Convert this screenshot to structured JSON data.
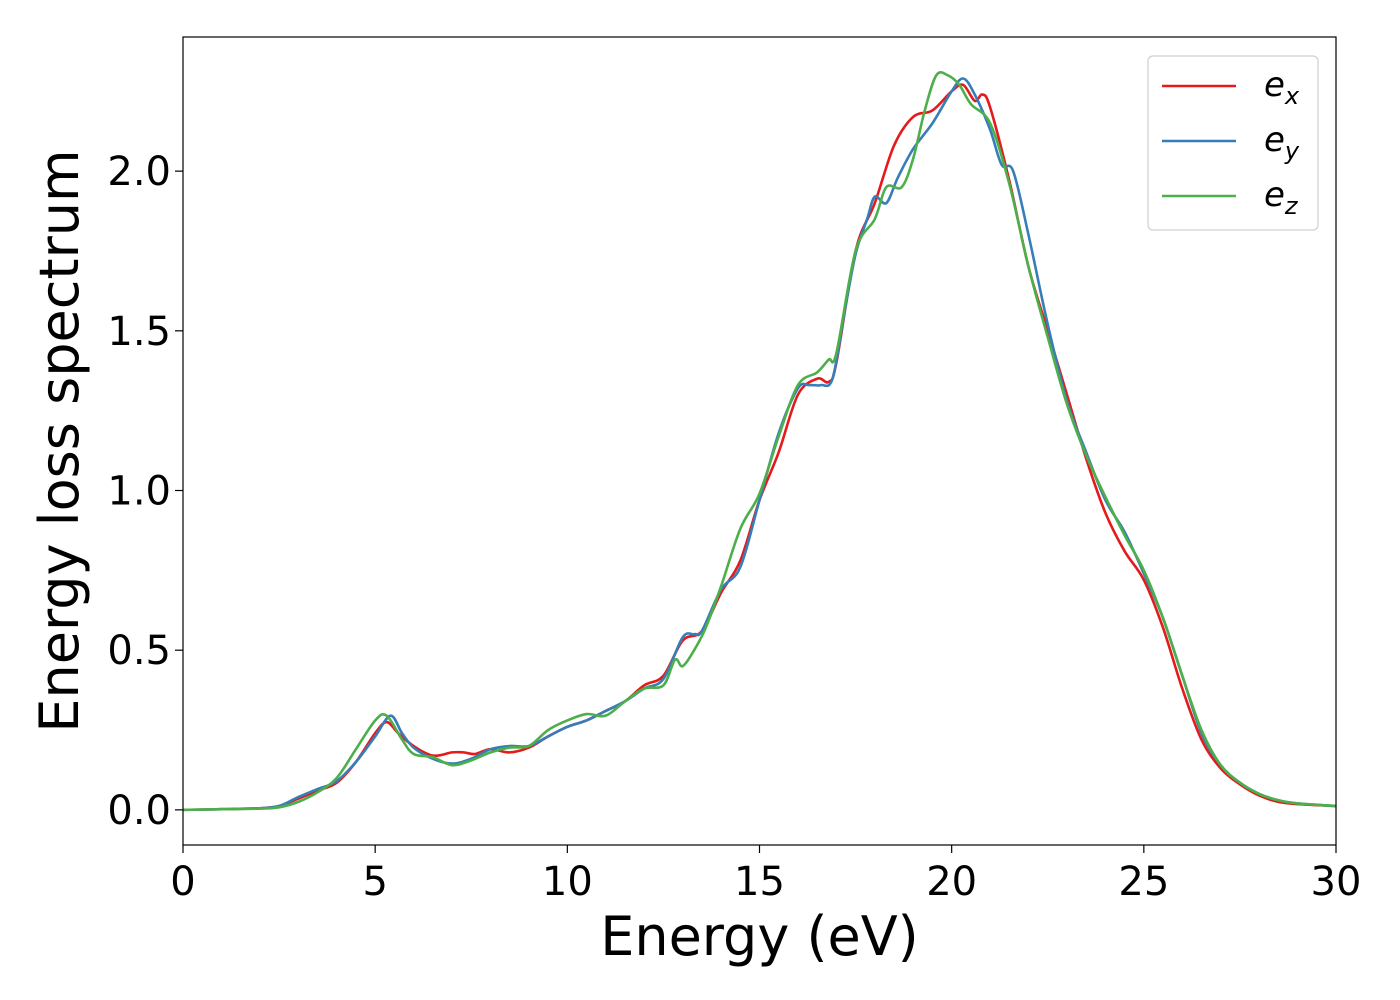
{
  "chart_data": {
    "type": "line",
    "xlabel": "Energy (eV)",
    "ylabel": "Energy loss spectrum",
    "xlim": [
      0,
      30
    ],
    "ylim": [
      -0.11,
      2.42
    ],
    "xticks": [
      0,
      5,
      10,
      15,
      20,
      25,
      30
    ],
    "xtick_labels": [
      "0",
      "5",
      "10",
      "15",
      "20",
      "25",
      "30"
    ],
    "yticks": [
      0.0,
      0.5,
      1.0,
      1.5,
      2.0
    ],
    "ytick_labels": [
      "0.0",
      "0.5",
      "1.0",
      "1.5",
      "2.0"
    ],
    "grid": false,
    "legend_position": "top-right",
    "series": [
      {
        "name": "e_x",
        "label_base": "e",
        "label_sub": "x",
        "color": "#e41a1c",
        "x": [
          0,
          1,
          2,
          2.5,
          3,
          3.5,
          4,
          4.5,
          5,
          5.3,
          5.6,
          6,
          6.5,
          7,
          7.3,
          7.6,
          8,
          8.5,
          9,
          9.5,
          10,
          10.5,
          11,
          11.5,
          12,
          12.5,
          13,
          13.5,
          14,
          14.5,
          15,
          15.5,
          16,
          16.5,
          16.8,
          17,
          17.5,
          18,
          18.5,
          19,
          19.5,
          20,
          20.3,
          20.6,
          20.8,
          21,
          21.5,
          22,
          22.5,
          23,
          23.5,
          24,
          24.5,
          25,
          25.5,
          26,
          26.5,
          27,
          27.5,
          28,
          28.5,
          29,
          30
        ],
        "y": [
          0,
          0.002,
          0.005,
          0.012,
          0.035,
          0.06,
          0.085,
          0.15,
          0.24,
          0.275,
          0.24,
          0.2,
          0.17,
          0.18,
          0.18,
          0.175,
          0.19,
          0.18,
          0.195,
          0.23,
          0.26,
          0.28,
          0.31,
          0.34,
          0.39,
          0.42,
          0.53,
          0.56,
          0.68,
          0.78,
          0.97,
          1.12,
          1.3,
          1.35,
          1.34,
          1.4,
          1.75,
          1.9,
          2.08,
          2.17,
          2.19,
          2.25,
          2.27,
          2.22,
          2.24,
          2.2,
          1.97,
          1.7,
          1.5,
          1.3,
          1.1,
          0.93,
          0.81,
          0.72,
          0.57,
          0.38,
          0.22,
          0.13,
          0.08,
          0.045,
          0.025,
          0.018,
          0.012
        ]
      },
      {
        "name": "e_y",
        "label_base": "e",
        "label_sub": "y",
        "color": "#377eb8",
        "x": [
          0,
          1,
          2,
          2.5,
          3,
          3.5,
          4,
          4.5,
          5,
          5.4,
          5.7,
          6,
          6.5,
          7,
          7.5,
          8,
          8.5,
          9,
          9.5,
          10,
          10.5,
          11,
          11.5,
          12,
          12.5,
          13,
          13.3,
          13.5,
          14,
          14.5,
          15,
          15.5,
          16,
          16.3,
          16.6,
          16.9,
          17.2,
          17.5,
          17.8,
          18,
          18.3,
          18.6,
          19,
          19.5,
          20,
          20.3,
          20.6,
          21,
          21.3,
          21.6,
          22,
          22.5,
          23,
          23.5,
          24,
          24.5,
          25,
          25.5,
          26,
          26.5,
          27,
          27.5,
          28,
          28.5,
          29,
          30
        ],
        "y": [
          0,
          0.002,
          0.005,
          0.012,
          0.04,
          0.065,
          0.09,
          0.15,
          0.23,
          0.295,
          0.24,
          0.195,
          0.16,
          0.145,
          0.16,
          0.19,
          0.2,
          0.2,
          0.23,
          0.26,
          0.28,
          0.31,
          0.34,
          0.38,
          0.41,
          0.54,
          0.55,
          0.56,
          0.69,
          0.76,
          0.97,
          1.18,
          1.32,
          1.33,
          1.33,
          1.35,
          1.55,
          1.74,
          1.85,
          1.92,
          1.9,
          1.98,
          2.07,
          2.15,
          2.25,
          2.29,
          2.24,
          2.13,
          2.02,
          2.0,
          1.8,
          1.52,
          1.28,
          1.12,
          0.97,
          0.87,
          0.74,
          0.6,
          0.42,
          0.24,
          0.14,
          0.085,
          0.05,
          0.03,
          0.02,
          0.012
        ]
      },
      {
        "name": "e_z",
        "label_base": "e",
        "label_sub": "z",
        "color": "#4daf4a",
        "x": [
          0,
          1,
          2,
          2.5,
          3,
          3.5,
          4,
          4.5,
          5,
          5.3,
          5.7,
          6,
          6.5,
          7,
          7.5,
          8,
          8.5,
          9,
          9.5,
          10,
          10.5,
          11,
          11.5,
          12,
          12.5,
          12.8,
          13,
          13.3,
          13.6,
          14,
          14.5,
          15,
          15.5,
          16,
          16.5,
          16.8,
          17,
          17.5,
          18,
          18.3,
          18.7,
          19,
          19.3,
          19.6,
          19.9,
          20.2,
          20.5,
          21,
          21.5,
          22,
          22.5,
          23,
          23.5,
          24,
          24.5,
          25,
          25.5,
          26,
          26.5,
          27,
          27.5,
          28,
          28.5,
          29,
          30
        ],
        "y": [
          0,
          0.002,
          0.004,
          0.008,
          0.025,
          0.055,
          0.1,
          0.19,
          0.28,
          0.295,
          0.22,
          0.175,
          0.165,
          0.14,
          0.155,
          0.18,
          0.195,
          0.2,
          0.25,
          0.28,
          0.3,
          0.295,
          0.34,
          0.38,
          0.39,
          0.47,
          0.45,
          0.5,
          0.57,
          0.7,
          0.88,
          0.99,
          1.17,
          1.33,
          1.37,
          1.41,
          1.43,
          1.75,
          1.85,
          1.95,
          1.95,
          2.04,
          2.19,
          2.3,
          2.3,
          2.27,
          2.21,
          2.15,
          1.96,
          1.7,
          1.48,
          1.27,
          1.11,
          0.98,
          0.86,
          0.75,
          0.6,
          0.42,
          0.25,
          0.14,
          0.085,
          0.05,
          0.03,
          0.02,
          0.012
        ]
      }
    ]
  }
}
